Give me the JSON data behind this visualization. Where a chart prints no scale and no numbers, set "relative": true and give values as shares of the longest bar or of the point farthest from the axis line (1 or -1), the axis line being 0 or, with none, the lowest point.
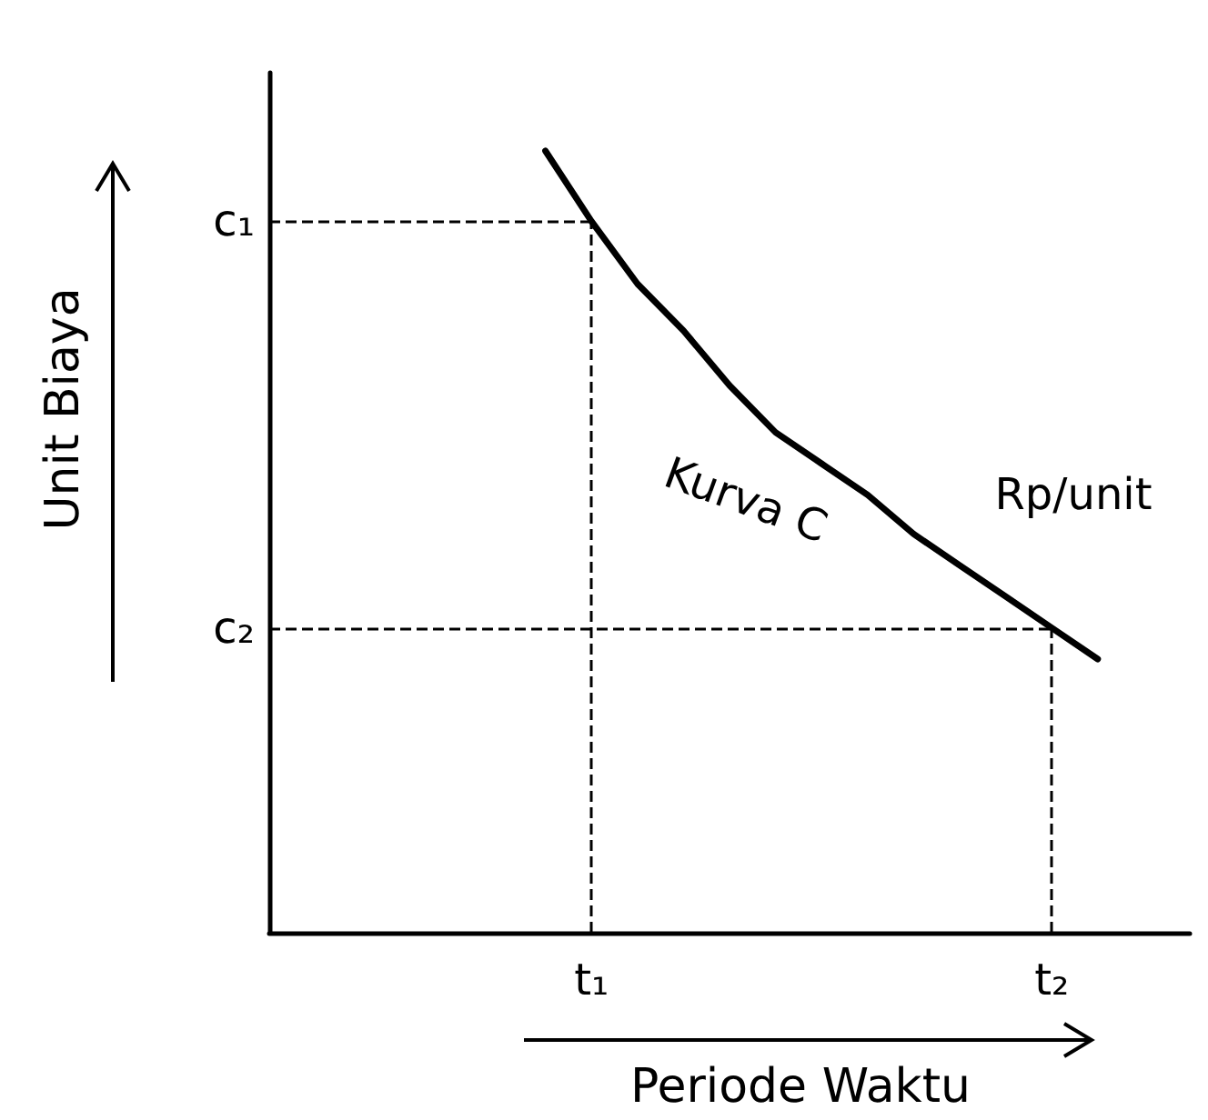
{
  "chart_data": {
    "type": "line",
    "relative": true,
    "xlabel": "Periode Waktu",
    "ylabel": "Unit Biaya",
    "marker": "none",
    "line_style": "solid",
    "categories": [
      null,
      null,
      null,
      null,
      null,
      null,
      null,
      "t₁",
      null,
      null,
      null,
      null,
      null,
      null,
      null,
      null,
      null,
      "t₂",
      null,
      null,
      null
    ],
    "series": [
      {
        "color": "#000000",
        "values": [
          null,
          null,
          null,
          null,
          null,
          null,
          1,
          0.91,
          0.83,
          0.77,
          0.7,
          0.64,
          0.6,
          0.56,
          0.51,
          0.47,
          0.43,
          0.39,
          0.35,
          null,
          null
        ]
      }
    ],
    "ref_lines": [
      {
        "axis": "x",
        "value": "t₁",
        "label": "c₁",
        "line_style": "dashed",
        "color": "#000000"
      },
      {
        "axis": "x",
        "value": "t₂",
        "label": "c₂",
        "line_style": "dashed",
        "color": "#000000"
      }
    ],
    "annotations": [
      "Kurva C",
      "Rp/unit"
    ]
  }
}
